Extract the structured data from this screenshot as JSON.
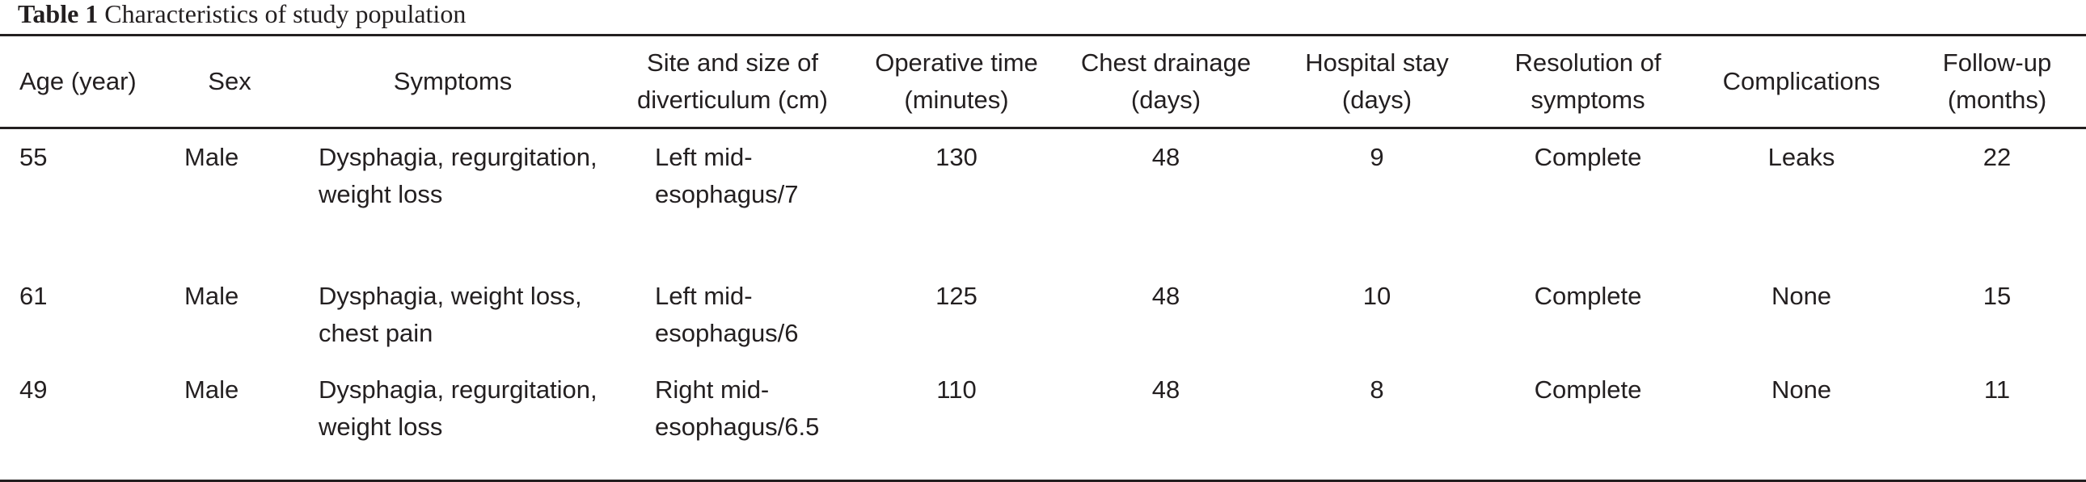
{
  "caption": {
    "label": "Table 1",
    "title": "Characteristics of study population"
  },
  "headers": [
    "Age (year)",
    "Sex",
    "Symptoms",
    "Site and size of diverticulum (cm)",
    "Operative time (minutes)",
    "Chest drainage (days)",
    "Hospital stay (days)",
    "Resolution of symptoms",
    "Complications",
    "Follow-up (months)"
  ],
  "rows": [
    [
      "55",
      "Male",
      "Dysphagia, regurgitation, weight loss",
      "Left mid-esophagus/7",
      "130",
      "48",
      "9",
      "Complete",
      "Leaks",
      "22"
    ],
    [
      "61",
      "Male",
      "Dysphagia, weight loss, chest pain",
      "Left mid-esophagus/6",
      "125",
      "48",
      "10",
      "Complete",
      "None",
      "15"
    ],
    [
      "49",
      "Male",
      "Dysphagia, regurgitation, weight loss",
      "Right mid-esophagus/6.5",
      "110",
      "48",
      "8",
      "Complete",
      "None",
      "11"
    ]
  ]
}
